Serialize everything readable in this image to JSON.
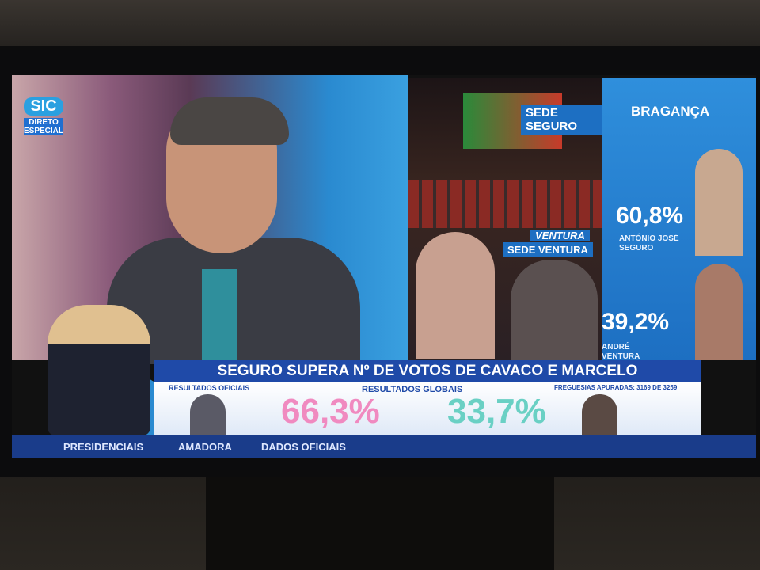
{
  "channel": {
    "logo": "SIC",
    "badge": [
      "DIRETO",
      "ESPECIAL"
    ]
  },
  "right_panel": {
    "location_tag": "SEDE SEGURO",
    "district": "BRAGANÇA",
    "candidates": [
      {
        "percent": "60,8%",
        "name": "ANTÓNIO JOSÉ SEGURO"
      },
      {
        "percent": "39,2%",
        "name": "ANDRÉ VENTURA"
      }
    ]
  },
  "feed": {
    "banner": "VENTURA",
    "location_tag": "SEDE VENTURA"
  },
  "lower_third": {
    "headline": "SEGURO SUPERA Nº DE VOTOS DE CAVACO E MARCELO",
    "left_label": "RESULTADOS OFICIAIS",
    "center_label": "RESULTADOS GLOBAIS",
    "right_label": "FREGUESIAS APURADAS: 3169 DE 3259",
    "results": [
      "66,3%",
      "33,7%"
    ]
  },
  "footer": {
    "program": "PRESIDENCIAIS",
    "municipality": "AMADORA",
    "source": "DADOS OFICIAIS"
  }
}
